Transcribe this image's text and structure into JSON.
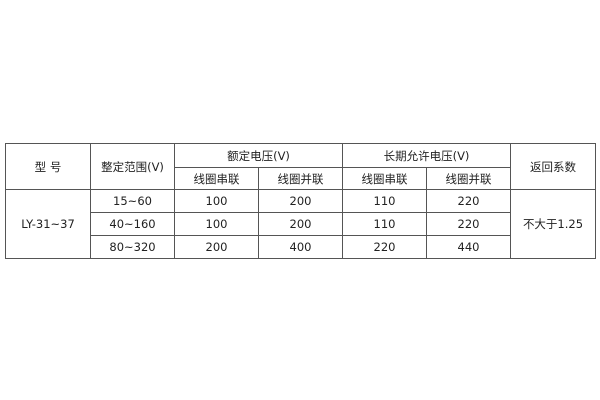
{
  "headers": {
    "model": "型 号",
    "range": "整定范围(V)",
    "rated_voltage": "额定电压(V)",
    "long_term_voltage": "长期允许电压(V)",
    "return_coefficient": "返回系数",
    "series": "线圈串联",
    "parallel": "线圈并联"
  },
  "model": "LY-31~37",
  "return_coefficient_value": "不大于1.25",
  "rows": [
    {
      "range": "15~60",
      "rated_series": "100",
      "rated_parallel": "200",
      "long_series": "110",
      "long_parallel": "220"
    },
    {
      "range": "40~160",
      "rated_series": "100",
      "rated_parallel": "200",
      "long_series": "110",
      "long_parallel": "220"
    },
    {
      "range": "80~320",
      "rated_series": "200",
      "rated_parallel": "400",
      "long_series": "220",
      "long_parallel": "440"
    }
  ]
}
